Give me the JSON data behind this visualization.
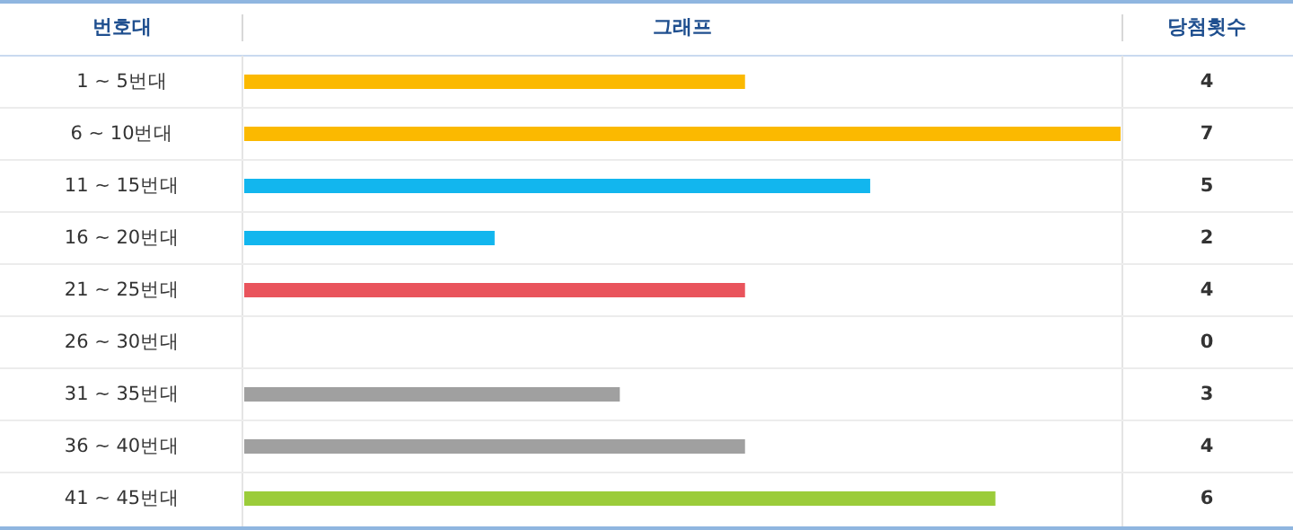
{
  "chart_data": {
    "type": "bar",
    "orientation": "horizontal",
    "ylabel": "번호대",
    "title": "그래프",
    "y2label": "당첨횟수",
    "categories": [
      "1 ~ 5번대",
      "6 ~ 10번대",
      "11 ~ 15번대",
      "16 ~ 20번대",
      "21 ~ 25번대",
      "26 ~ 30번대",
      "31 ~ 35번대",
      "36 ~ 40번대",
      "41 ~ 45번대"
    ],
    "values": [
      4,
      7,
      5,
      2,
      4,
      0,
      3,
      4,
      6
    ],
    "colors": [
      "#fbb900",
      "#fbb900",
      "#12b6ee",
      "#12b6ee",
      "#e9545c",
      "#e9545c",
      "#a0a0a0",
      "#a0a0a0",
      "#9bcc3a"
    ],
    "xlim": [
      0,
      7
    ],
    "data_labels": true
  }
}
